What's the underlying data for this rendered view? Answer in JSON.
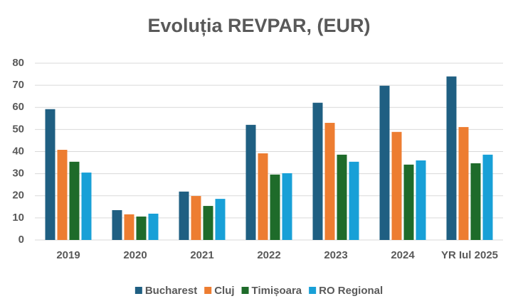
{
  "chart_data": {
    "type": "bar",
    "title": "Evoluția REVPAR, (EUR)",
    "categories": [
      "2019",
      "2020",
      "2021",
      "2022",
      "2023",
      "2024",
      "YR Iul 2025"
    ],
    "series": [
      {
        "name": "Bucharest",
        "color": "#1f5f82",
        "values": [
          59.2,
          13.5,
          21.9,
          52.1,
          62.1,
          69.8,
          74.0
        ]
      },
      {
        "name": "Cluj",
        "color": "#ed7d31",
        "values": [
          40.8,
          11.6,
          19.9,
          39.2,
          53.0,
          48.9,
          51.1
        ]
      },
      {
        "name": "Timișoara",
        "color": "#1e6b2a",
        "values": [
          35.4,
          10.6,
          15.4,
          29.6,
          38.6,
          34.1,
          34.7
        ]
      },
      {
        "name": "RO Regional",
        "color": "#18a0d7",
        "values": [
          30.5,
          11.9,
          18.6,
          30.2,
          35.4,
          36.0,
          38.6
        ]
      }
    ],
    "ylim": [
      0,
      80
    ],
    "yticks": [
      0,
      10,
      20,
      30,
      40,
      50,
      60,
      70,
      80
    ],
    "grid": true,
    "legend": "bottom"
  }
}
